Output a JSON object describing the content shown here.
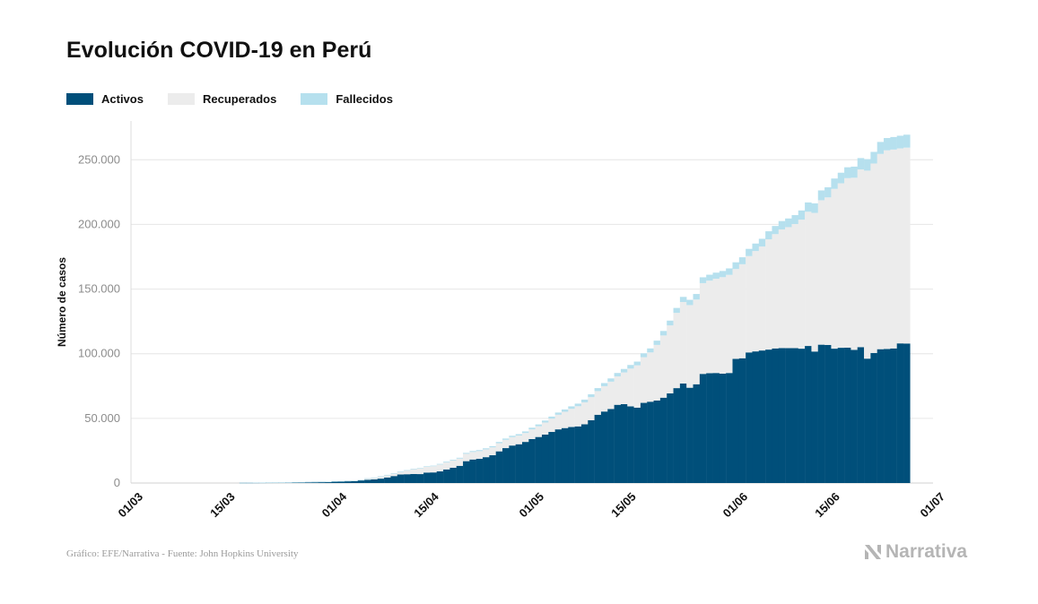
{
  "title": "Evolución COVID-19 en Perú",
  "legend": [
    {
      "label": "Activos",
      "color": "#004f7a"
    },
    {
      "label": "Recuperados",
      "color": "#ececec"
    },
    {
      "label": "Fallecidos",
      "color": "#b6e0ee"
    }
  ],
  "source": "Gráfico: EFE/Narrativa - Fuente: John Hopkins University",
  "brand": "Narrativa",
  "chart_data": {
    "type": "bar",
    "stacked": true,
    "title": "Evolución COVID-19 en Perú",
    "xlabel": "",
    "ylabel": "Número de casos",
    "ylim": [
      0,
      280000
    ],
    "yticks": [
      0,
      50000,
      100000,
      150000,
      200000,
      250000
    ],
    "ytick_labels": [
      "0",
      "50.000",
      "100.000",
      "150.000",
      "200.000",
      "250.000"
    ],
    "xticks": [
      "2020-03-01",
      "2020-03-15",
      "2020-04-01",
      "2020-04-15",
      "2020-05-01",
      "2020-05-15",
      "2020-06-01",
      "2020-06-15",
      "2020-07-01"
    ],
    "xtick_labels": [
      "01/03",
      "15/03",
      "01/04",
      "15/04",
      "01/05",
      "15/05",
      "01/06",
      "15/06",
      "01/07"
    ],
    "x_range": [
      "2020-03-01",
      "2020-07-01"
    ],
    "grid": "horizontal",
    "legend_position": "top-left",
    "x": [
      "2020-03-18",
      "2020-03-19",
      "2020-03-20",
      "2020-03-21",
      "2020-03-22",
      "2020-03-23",
      "2020-03-24",
      "2020-03-25",
      "2020-03-26",
      "2020-03-27",
      "2020-03-28",
      "2020-03-29",
      "2020-03-30",
      "2020-03-31",
      "2020-04-01",
      "2020-04-02",
      "2020-04-03",
      "2020-04-04",
      "2020-04-05",
      "2020-04-06",
      "2020-04-07",
      "2020-04-08",
      "2020-04-09",
      "2020-04-10",
      "2020-04-11",
      "2020-04-12",
      "2020-04-13",
      "2020-04-14",
      "2020-04-15",
      "2020-04-16",
      "2020-04-17",
      "2020-04-18",
      "2020-04-19",
      "2020-04-20",
      "2020-04-21",
      "2020-04-22",
      "2020-04-23",
      "2020-04-24",
      "2020-04-25",
      "2020-04-26",
      "2020-04-27",
      "2020-04-28",
      "2020-04-29",
      "2020-04-30",
      "2020-05-01",
      "2020-05-02",
      "2020-05-03",
      "2020-05-04",
      "2020-05-05",
      "2020-05-06",
      "2020-05-07",
      "2020-05-08",
      "2020-05-09",
      "2020-05-10",
      "2020-05-11",
      "2020-05-12",
      "2020-05-13",
      "2020-05-14",
      "2020-05-15",
      "2020-05-16",
      "2020-05-17",
      "2020-05-18",
      "2020-05-19",
      "2020-05-20",
      "2020-05-21",
      "2020-05-22",
      "2020-05-23",
      "2020-05-24",
      "2020-05-25",
      "2020-05-26",
      "2020-05-27",
      "2020-05-28",
      "2020-05-29",
      "2020-05-30",
      "2020-05-31",
      "2020-06-01",
      "2020-06-02",
      "2020-06-03",
      "2020-06-04",
      "2020-06-05",
      "2020-06-06",
      "2020-06-07",
      "2020-06-08",
      "2020-06-09",
      "2020-06-10",
      "2020-06-11",
      "2020-06-12",
      "2020-06-13",
      "2020-06-14",
      "2020-06-15",
      "2020-06-16",
      "2020-06-17",
      "2020-06-18",
      "2020-06-19",
      "2020-06-20",
      "2020-06-21",
      "2020-06-22",
      "2020-06-23",
      "2020-06-24",
      "2020-06-25",
      "2020-06-26",
      "2020-06-27"
    ],
    "series": [
      {
        "name": "Activos",
        "values": [
          230,
          250,
          320,
          360,
          390,
          400,
          410,
          440,
          560,
          620,
          760,
          820,
          920,
          1000,
          1270,
          1380,
          1560,
          1700,
          2200,
          2500,
          2800,
          3400,
          4300,
          5400,
          6600,
          6800,
          7000,
          6900,
          8100,
          8200,
          9000,
          10500,
          11800,
          13300,
          16900,
          18200,
          18700,
          20000,
          21500,
          24500,
          27000,
          29000,
          30000,
          31800,
          34000,
          35600,
          37500,
          39500,
          41500,
          42500,
          43300,
          43800,
          45400,
          48600,
          52800,
          55300,
          57300,
          60500,
          61000,
          59300,
          58300,
          62000,
          62900,
          63800,
          66000,
          69300,
          73400,
          77000,
          73700,
          76400,
          84400,
          84900,
          85100,
          84600,
          85100,
          96000,
          96500,
          101000,
          101800,
          102500,
          103200,
          104100,
          104400,
          104300,
          104300,
          103900,
          106000,
          101700,
          107000,
          106800,
          103900,
          104600,
          104700,
          103000,
          105100,
          96200,
          100600,
          103500,
          103700,
          104100,
          108000,
          107900
        ]
      },
      {
        "name": "Recuperados",
        "values": [
          0,
          0,
          0,
          0,
          0,
          0,
          0,
          0,
          0,
          0,
          0,
          0,
          0,
          0,
          0,
          0,
          0,
          0,
          0,
          1000,
          1200,
          1600,
          1800,
          2000,
          2100,
          2900,
          3800,
          4400,
          4400,
          4800,
          5300,
          5500,
          5600,
          5600,
          5700,
          5800,
          6000,
          6000,
          6100,
          6300,
          6400,
          6500,
          6700,
          6900,
          7500,
          8300,
          9300,
          10300,
          11300,
          12600,
          14100,
          15600,
          17000,
          17800,
          18300,
          19600,
          21100,
          22000,
          24500,
          29200,
          32700,
          35300,
          38100,
          43000,
          48100,
          52600,
          58200,
          63000,
          63900,
          65500,
          70200,
          71600,
          72900,
          74600,
          75900,
          69500,
          72700,
          74500,
          77600,
          80400,
          85300,
          88400,
          91700,
          93600,
          96000,
          99800,
          103800,
          107200,
          111700,
          114100,
          123600,
          127200,
          131100,
          133100,
          137400,
          145400,
          146500,
          151000,
          153600,
          153800,
          150800,
          151500
        ]
      },
      {
        "name": "Fallecidos",
        "values": [
          0,
          0,
          0,
          0,
          0,
          0,
          0,
          0,
          0,
          0,
          0,
          0,
          0,
          0,
          0,
          0,
          0,
          0,
          0,
          0,
          0,
          0,
          0,
          0,
          0,
          0,
          0,
          0,
          0,
          0,
          0,
          0,
          0,
          0,
          0,
          0,
          0,
          0,
          0,
          0,
          0,
          0,
          0,
          0,
          0,
          0,
          0,
          0,
          0,
          0,
          0,
          0,
          0,
          0,
          0,
          0,
          0,
          0,
          0,
          0,
          0,
          0,
          0,
          0,
          0,
          0,
          0,
          0,
          0,
          0,
          0,
          0,
          0,
          0,
          0,
          0,
          0,
          0,
          0,
          0,
          0,
          0,
          0,
          0,
          0,
          0,
          0,
          0,
          0,
          0,
          0,
          0,
          0,
          0,
          0,
          0,
          0,
          0,
          0,
          0,
          0,
          0
        ]
      }
    ],
    "deaths_values": [
      3,
      4,
      5,
      5,
      7,
      7,
      9,
      11,
      16,
      18,
      24,
      30,
      38,
      50,
      60,
      70,
      85,
      100,
      120,
      140,
      160,
      180,
      200,
      220,
      240,
      270,
      290,
      320,
      400,
      440,
      500,
      550,
      600,
      650,
      700,
      750,
      800,
      850,
      900,
      950,
      1000,
      1050,
      1100,
      1200,
      1300,
      1400,
      1500,
      1600,
      1700,
      1800,
      1900,
      2000,
      2100,
      2200,
      2300,
      2400,
      2500,
      2600,
      2700,
      2800,
      2900,
      3000,
      3100,
      3300,
      3500,
      3700,
      3800,
      3950,
      4100,
      4300,
      4500,
      4600,
      4700,
      4800,
      5000,
      5200,
      5400,
      5600,
      5800,
      6000,
      6200,
      6300,
      6500,
      6700,
      6900,
      7100,
      7200,
      7400,
      7600,
      7800,
      8000,
      8200,
      8400,
      8600,
      8800,
      8900,
      9000,
      9300,
      9500,
      9700,
      9800,
      10000
    ]
  }
}
